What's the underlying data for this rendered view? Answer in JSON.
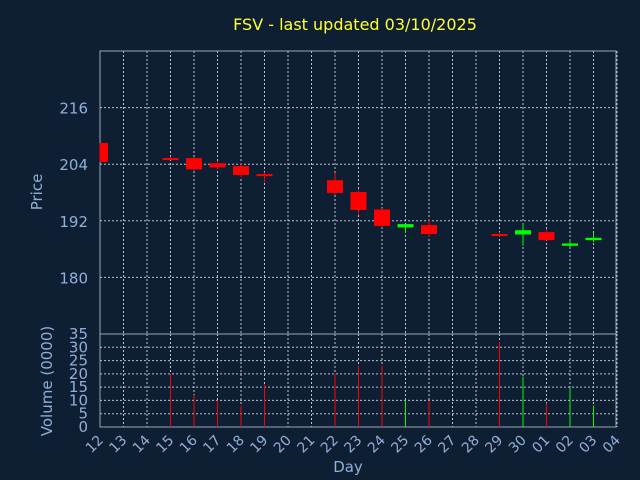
{
  "chart_data": {
    "type": "candlestick",
    "title": "FSV - last updated 03/10/2025",
    "price_panel": {
      "ylabel": "Price",
      "yticks": [
        180,
        192,
        204,
        216
      ],
      "ylim": [
        168,
        228
      ]
    },
    "volume_panel": {
      "ylabel": "Volume (0000)",
      "yticks": [
        0,
        5,
        10,
        15,
        20,
        25,
        30,
        35
      ],
      "ylim": [
        0,
        35
      ]
    },
    "xlabel": "Day",
    "x_ticks": [
      "12",
      "13",
      "14",
      "15",
      "16",
      "17",
      "18",
      "19",
      "20",
      "21",
      "22",
      "23",
      "24",
      "25",
      "26",
      "27",
      "28",
      "29",
      "30",
      "01",
      "02",
      "03",
      "04"
    ],
    "up_color": "#00ff00",
    "down_color": "#ff0000",
    "candles": [
      {
        "day": "12",
        "open": 208.5,
        "high": 208.5,
        "low": 204.5,
        "close": 204.5,
        "volume": 0
      },
      {
        "day": "15",
        "open": 205.3,
        "high": 205.6,
        "low": 204.9,
        "close": 205.0,
        "volume": 20
      },
      {
        "day": "16",
        "open": 205.3,
        "high": 205.5,
        "low": 202.6,
        "close": 202.9,
        "volume": 12
      },
      {
        "day": "17",
        "open": 204.2,
        "high": 204.6,
        "low": 203.0,
        "close": 203.3,
        "volume": 10
      },
      {
        "day": "18",
        "open": 203.6,
        "high": 204.2,
        "low": 201.2,
        "close": 201.7,
        "volume": 8
      },
      {
        "day": "19",
        "open": 201.9,
        "high": 202.3,
        "low": 200.2,
        "close": 201.6,
        "volume": 16
      },
      {
        "day": "22",
        "open": 200.6,
        "high": 202.2,
        "low": 197.5,
        "close": 197.9,
        "volume": 20
      },
      {
        "day": "23",
        "open": 198.1,
        "high": 198.6,
        "low": 193.3,
        "close": 194.3,
        "volume": 23
      },
      {
        "day": "24",
        "open": 194.4,
        "high": 194.6,
        "low": 190.6,
        "close": 190.9,
        "volume": 23
      },
      {
        "day": "25",
        "open": 190.6,
        "high": 191.3,
        "low": 189.4,
        "close": 191.3,
        "volume": 10
      },
      {
        "day": "26",
        "open": 191.1,
        "high": 192.3,
        "low": 188.6,
        "close": 189.2,
        "volume": 10
      },
      {
        "day": "29",
        "open": 189.2,
        "high": 189.6,
        "low": 188.6,
        "close": 188.9,
        "volume": 32
      },
      {
        "day": "30",
        "open": 189.1,
        "high": 191.4,
        "low": 186.7,
        "close": 190.0,
        "volume": 19
      },
      {
        "day": "01",
        "open": 189.6,
        "high": 190.2,
        "low": 187.8,
        "close": 187.9,
        "volume": 9
      },
      {
        "day": "02",
        "open": 186.7,
        "high": 188.1,
        "low": 186.4,
        "close": 187.2,
        "volume": 15
      },
      {
        "day": "03",
        "open": 187.9,
        "high": 189.4,
        "low": 187.5,
        "close": 188.4,
        "volume": 8
      }
    ]
  }
}
